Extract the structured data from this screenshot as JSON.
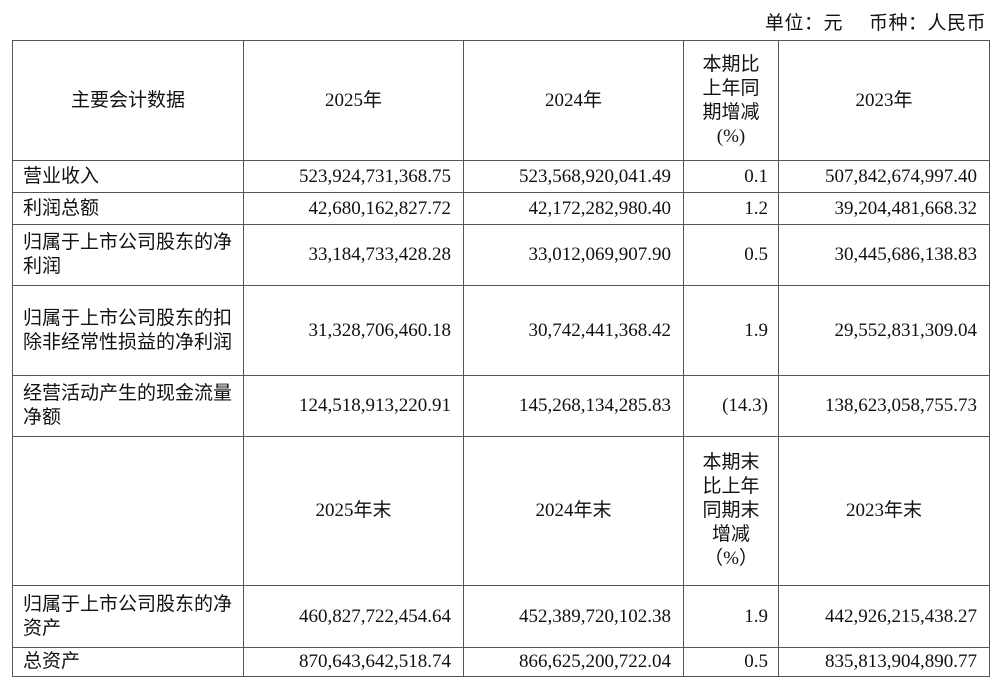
{
  "unit_note": {
    "unit": "单位：元",
    "currency": "币种：人民币"
  },
  "header1": {
    "item": "主要会计数据",
    "y1": "2025年",
    "y2": "2024年",
    "change": "本期比上年同期增减(%)",
    "change_lines": [
      "本期比",
      "上年同",
      "期增减",
      "(%)"
    ],
    "y3": "2023年"
  },
  "rows1": [
    {
      "label": "营业收入",
      "v2025": "523,924,731,368.75",
      "v2024": "523,568,920,041.49",
      "change": "0.1",
      "v2023": "507,842,674,997.40"
    },
    {
      "label": "利润总额",
      "v2025": "42,680,162,827.72",
      "v2024": "42,172,282,980.40",
      "change": "1.2",
      "v2023": "39,204,481,668.32"
    },
    {
      "label": "归属于上市公司股东的净利润",
      "v2025": "33,184,733,428.28",
      "v2024": "33,012,069,907.90",
      "change": "0.5",
      "v2023": "30,445,686,138.83"
    },
    {
      "label": "归属于上市公司股东的扣除非经常性损益的净利润",
      "v2025": "31,328,706,460.18",
      "v2024": "30,742,441,368.42",
      "change": "1.9",
      "v2023": "29,552,831,309.04"
    },
    {
      "label": "经营活动产生的现金流量净额",
      "v2025": "124,518,913,220.91",
      "v2024": "145,268,134,285.83",
      "change": "(14.3)",
      "v2023": "138,623,058,755.73"
    }
  ],
  "header2": {
    "item": "",
    "y1": "2025年末",
    "y2": "2024年末",
    "change_lines": [
      "本期末",
      "比上年",
      "同期末",
      "增减",
      "（%）"
    ],
    "y3": "2023年末"
  },
  "rows2": [
    {
      "label": "归属于上市公司股东的净资产",
      "v2025": "460,827,722,454.64",
      "v2024": "452,389,720,102.38",
      "change": "1.9",
      "v2023": "442,926,215,438.27"
    },
    {
      "label": "总资产",
      "v2025": "870,643,642,518.74",
      "v2024": "866,625,200,722.04",
      "change": "0.5",
      "v2023": "835,813,904,890.77"
    }
  ]
}
